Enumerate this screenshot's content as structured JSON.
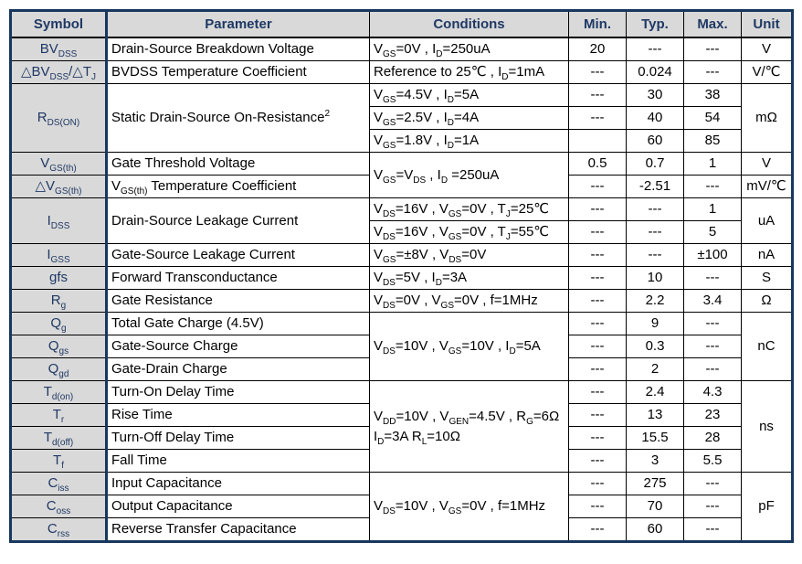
{
  "colors": {
    "accent": "#17375E",
    "header_bg": "#D9D9D9",
    "header_text": "#1F3864"
  },
  "table": {
    "columns": [
      "Symbol",
      "Parameter",
      "Conditions",
      "Min.",
      "Typ.",
      "Max.",
      "Unit"
    ],
    "rows": [
      [
        {
          "c": "sym",
          "t": "BV~DSS~"
        },
        {
          "c": "par",
          "t": "Drain-Source Breakdown Voltage"
        },
        {
          "c": "cond",
          "t": "V~GS~=0V , I~D~=250uA"
        },
        {
          "c": "min",
          "t": "20"
        },
        {
          "c": "typ",
          "t": "---"
        },
        {
          "c": "max",
          "t": "---"
        },
        {
          "c": "unit",
          "t": "V"
        }
      ],
      [
        {
          "c": "sym",
          "t": "△BV~DSS~/△T~J~"
        },
        {
          "c": "par",
          "t": "BVDSS Temperature Coefficient"
        },
        {
          "c": "cond",
          "t": "Reference to 25℃ , I~D~=1mA"
        },
        {
          "c": "min",
          "t": "---"
        },
        {
          "c": "typ",
          "t": "0.024"
        },
        {
          "c": "max",
          "t": "---"
        },
        {
          "c": "unit",
          "t": "V/℃"
        }
      ],
      [
        {
          "c": "sym",
          "t": "R~DS(ON)~",
          "rs": 3
        },
        {
          "c": "par",
          "t": "Static Drain-Source On-Resistance^2^",
          "rs": 3
        },
        {
          "c": "cond",
          "t": "V~GS~=4.5V , I~D~=5A"
        },
        {
          "c": "min",
          "t": "---"
        },
        {
          "c": "typ",
          "t": "30"
        },
        {
          "c": "max",
          "t": "38"
        },
        {
          "c": "unit",
          "t": "mΩ",
          "rs": 3
        }
      ],
      [
        {
          "c": "cond",
          "t": "V~GS~=2.5V , I~D~=4A"
        },
        {
          "c": "min",
          "t": "---"
        },
        {
          "c": "typ",
          "t": "40"
        },
        {
          "c": "max",
          "t": "54"
        }
      ],
      [
        {
          "c": "cond",
          "t": "V~GS~=1.8V , I~D~=1A"
        },
        {
          "c": "min",
          "t": ""
        },
        {
          "c": "typ",
          "t": "60"
        },
        {
          "c": "max",
          "t": "85"
        }
      ],
      [
        {
          "c": "sym",
          "t": "V~GS(th)~"
        },
        {
          "c": "par",
          "t": "Gate Threshold Voltage"
        },
        {
          "c": "cond",
          "t": "V~GS~=V~DS~ , I~D~ =250uA",
          "rs": 2
        },
        {
          "c": "min",
          "t": "0.5"
        },
        {
          "c": "typ",
          "t": "0.7"
        },
        {
          "c": "max",
          "t": "1"
        },
        {
          "c": "unit",
          "t": "V"
        }
      ],
      [
        {
          "c": "sym",
          "t": "△V~GS(th)~"
        },
        {
          "c": "par",
          "t": "V~GS(th)~ Temperature Coefficient"
        },
        {
          "c": "min",
          "t": "---"
        },
        {
          "c": "typ",
          "t": "-2.51"
        },
        {
          "c": "max",
          "t": "---"
        },
        {
          "c": "unit",
          "t": "mV/℃"
        }
      ],
      [
        {
          "c": "sym",
          "t": "I~DSS~",
          "rs": 2
        },
        {
          "c": "par",
          "t": "Drain-Source Leakage Current",
          "rs": 2
        },
        {
          "c": "cond",
          "t": "V~DS~=16V , V~GS~=0V , T~J~=25℃"
        },
        {
          "c": "min",
          "t": "---"
        },
        {
          "c": "typ",
          "t": "---"
        },
        {
          "c": "max",
          "t": "1"
        },
        {
          "c": "unit",
          "t": "uA",
          "rs": 2
        }
      ],
      [
        {
          "c": "cond",
          "t": "V~DS~=16V , V~GS~=0V , T~J~=55℃"
        },
        {
          "c": "min",
          "t": "---"
        },
        {
          "c": "typ",
          "t": "---"
        },
        {
          "c": "max",
          "t": "5"
        }
      ],
      [
        {
          "c": "sym",
          "t": "I~GSS~"
        },
        {
          "c": "par",
          "t": "Gate-Source Leakage Current"
        },
        {
          "c": "cond",
          "t": "V~GS~=±8V , V~DS~=0V"
        },
        {
          "c": "min",
          "t": "---"
        },
        {
          "c": "typ",
          "t": "---"
        },
        {
          "c": "max",
          "t": "±100"
        },
        {
          "c": "unit",
          "t": "nA"
        }
      ],
      [
        {
          "c": "sym",
          "t": "gfs"
        },
        {
          "c": "par",
          "t": "Forward Transconductance"
        },
        {
          "c": "cond",
          "t": "V~DS~=5V , I~D~=3A"
        },
        {
          "c": "min",
          "t": "---"
        },
        {
          "c": "typ",
          "t": "10"
        },
        {
          "c": "max",
          "t": "---"
        },
        {
          "c": "unit",
          "t": "S"
        }
      ],
      [
        {
          "c": "sym",
          "t": "R~g~"
        },
        {
          "c": "par",
          "t": "Gate Resistance"
        },
        {
          "c": "cond",
          "t": "V~DS~=0V , V~GS~=0V , f=1MHz"
        },
        {
          "c": "min",
          "t": "---"
        },
        {
          "c": "typ",
          "t": "2.2"
        },
        {
          "c": "max",
          "t": "3.4"
        },
        {
          "c": "unit",
          "t": "Ω"
        }
      ],
      [
        {
          "c": "sym",
          "t": "Q~g~"
        },
        {
          "c": "par",
          "t": "Total Gate Charge (4.5V)"
        },
        {
          "c": "cond",
          "t": "V~DS~=10V , V~GS~=10V , I~D~=5A",
          "rs": 3
        },
        {
          "c": "min",
          "t": "---"
        },
        {
          "c": "typ",
          "t": "9"
        },
        {
          "c": "max",
          "t": "---"
        },
        {
          "c": "unit",
          "t": "nC",
          "rs": 3
        }
      ],
      [
        {
          "c": "sym",
          "t": "Q~gs~"
        },
        {
          "c": "par",
          "t": "Gate-Source Charge"
        },
        {
          "c": "min",
          "t": "---"
        },
        {
          "c": "typ",
          "t": "0.3"
        },
        {
          "c": "max",
          "t": "---"
        }
      ],
      [
        {
          "c": "sym",
          "t": "Q~gd~"
        },
        {
          "c": "par",
          "t": "Gate-Drain Charge"
        },
        {
          "c": "min",
          "t": "---"
        },
        {
          "c": "typ",
          "t": "2"
        },
        {
          "c": "max",
          "t": "---"
        }
      ],
      [
        {
          "c": "sym",
          "t": "T~d(on)~"
        },
        {
          "c": "par",
          "t": "Turn-On Delay Time"
        },
        {
          "c": "cond",
          "t": "V~DD~=10V , V~GEN~=4.5V , R~G~=6Ω\nI~D~=3A R~L~=10Ω",
          "rs": 4
        },
        {
          "c": "min",
          "t": "---"
        },
        {
          "c": "typ",
          "t": "2.4"
        },
        {
          "c": "max",
          "t": "4.3"
        },
        {
          "c": "unit",
          "t": "ns",
          "rs": 4
        }
      ],
      [
        {
          "c": "sym",
          "t": "T~r~"
        },
        {
          "c": "par",
          "t": "Rise Time"
        },
        {
          "c": "min",
          "t": "---"
        },
        {
          "c": "typ",
          "t": "13"
        },
        {
          "c": "max",
          "t": "23"
        }
      ],
      [
        {
          "c": "sym",
          "t": "T~d(off)~"
        },
        {
          "c": "par",
          "t": "Turn-Off Delay Time"
        },
        {
          "c": "min",
          "t": "---"
        },
        {
          "c": "typ",
          "t": "15.5"
        },
        {
          "c": "max",
          "t": "28"
        }
      ],
      [
        {
          "c": "sym",
          "t": "T~f~"
        },
        {
          "c": "par",
          "t": "Fall Time"
        },
        {
          "c": "min",
          "t": "---"
        },
        {
          "c": "typ",
          "t": "3"
        },
        {
          "c": "max",
          "t": "5.5"
        }
      ],
      [
        {
          "c": "sym",
          "t": "C~iss~"
        },
        {
          "c": "par",
          "t": "Input Capacitance"
        },
        {
          "c": "cond",
          "t": "V~DS~=10V , V~GS~=0V , f=1MHz",
          "rs": 3
        },
        {
          "c": "min",
          "t": "---"
        },
        {
          "c": "typ",
          "t": "275"
        },
        {
          "c": "max",
          "t": "---"
        },
        {
          "c": "unit",
          "t": "pF",
          "rs": 3
        }
      ],
      [
        {
          "c": "sym",
          "t": "C~oss~"
        },
        {
          "c": "par",
          "t": "Output Capacitance"
        },
        {
          "c": "min",
          "t": "---"
        },
        {
          "c": "typ",
          "t": "70"
        },
        {
          "c": "max",
          "t": "---"
        }
      ],
      [
        {
          "c": "sym",
          "t": "C~rss~"
        },
        {
          "c": "par",
          "t": "Reverse Transfer Capacitance"
        },
        {
          "c": "min",
          "t": "---"
        },
        {
          "c": "typ",
          "t": "60"
        },
        {
          "c": "max",
          "t": "---"
        }
      ]
    ]
  }
}
